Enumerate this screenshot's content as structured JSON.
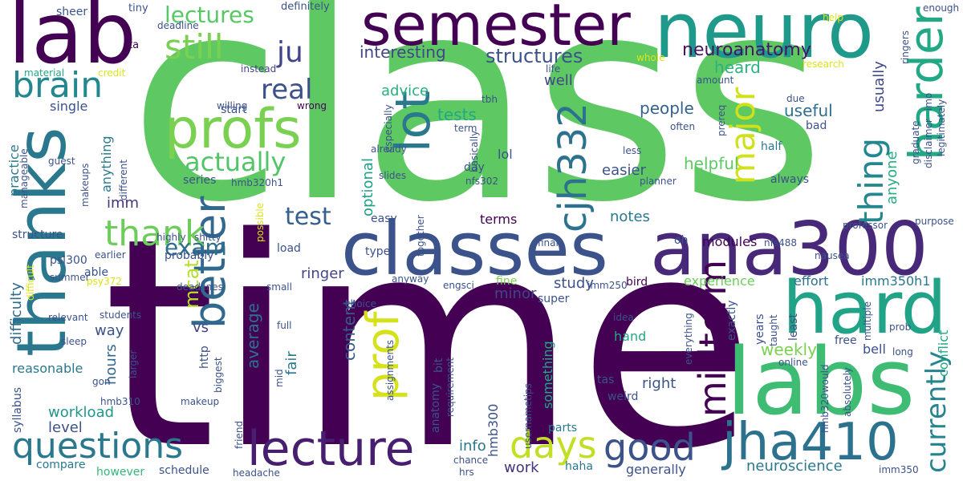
{
  "words": [
    {
      "text": "time",
      "color": "#440154"
    },
    {
      "text": "class",
      "color": "#5ec962"
    },
    {
      "text": "labs",
      "color": "#3fbc73"
    },
    {
      "text": "hard",
      "color": "#20a386"
    },
    {
      "text": "thanks",
      "color": "#2a788e"
    },
    {
      "text": "lab",
      "color": "#440154"
    },
    {
      "text": "neuro",
      "color": "#1f9a8a"
    },
    {
      "text": "semester",
      "color": "#440154"
    },
    {
      "text": "classes",
      "color": "#3b528b"
    },
    {
      "text": "ana300",
      "color": "#482878"
    },
    {
      "text": "profs",
      "color": "#7ad151"
    },
    {
      "text": "lecture",
      "color": "#481f70"
    },
    {
      "text": "jha410",
      "color": "#2c718e"
    },
    {
      "text": "questions",
      "color": "#2a788e"
    },
    {
      "text": "better",
      "color": "#31688e"
    },
    {
      "text": "harder",
      "color": "#22a884"
    },
    {
      "text": "prof",
      "color": "#d5e21a"
    },
    {
      "text": "days",
      "color": "#c2df23"
    },
    {
      "text": "good",
      "color": "#3b528b"
    },
    {
      "text": "midterm",
      "color": "#440154"
    },
    {
      "text": "lot",
      "color": "#2a788e"
    },
    {
      "text": "cjh332",
      "color": "#2c728e"
    },
    {
      "text": "thing",
      "color": "#24878e"
    },
    {
      "text": "major",
      "color": "#d0e11c"
    },
    {
      "text": "currently",
      "color": "#25848e"
    },
    {
      "text": "thank",
      "color": "#6ccd5a"
    },
    {
      "text": "brain",
      "color": "#23888e"
    },
    {
      "text": "still",
      "color": "#7ad151"
    },
    {
      "text": "actually",
      "color": "#52c569"
    },
    {
      "text": "exam",
      "color": "#2e6e8e"
    },
    {
      "text": "test",
      "color": "#355f8d"
    },
    {
      "text": "real",
      "color": "#3b528b"
    },
    {
      "text": "ju",
      "color": "#414487"
    },
    {
      "text": "lectures",
      "color": "#58c765"
    },
    {
      "text": "structures",
      "color": "#3b528b"
    },
    {
      "text": "neuroanatomy",
      "color": "#471365"
    },
    {
      "text": "interesting",
      "color": "#404688"
    },
    {
      "text": "advice",
      "color": "#29af7f"
    },
    {
      "text": "heard",
      "color": "#2db27d"
    },
    {
      "text": "well",
      "color": "#414487"
    },
    {
      "text": "usually",
      "color": "#3e4989"
    },
    {
      "text": "anyone",
      "color": "#26ad81"
    },
    {
      "text": "tests",
      "color": "#22a884"
    },
    {
      "text": "useful",
      "color": "#2d708e"
    },
    {
      "text": "people",
      "color": "#34618d"
    },
    {
      "text": "helpful",
      "color": "#5ec962"
    },
    {
      "text": "easier",
      "color": "#3b528b"
    },
    {
      "text": "mcat",
      "color": "#b5de2b"
    },
    {
      "text": "average",
      "color": "#2c728e"
    },
    {
      "text": "weekly",
      "color": "#7ad151"
    },
    {
      "text": "content",
      "color": "#375b8d"
    },
    {
      "text": "optional",
      "color": "#1fa188"
    },
    {
      "text": "hours",
      "color": "#31688e"
    },
    {
      "text": "workload",
      "color": "#1f978b"
    },
    {
      "text": "level",
      "color": "#3b528b"
    },
    {
      "text": "notes",
      "color": "#2a788e"
    },
    {
      "text": "study",
      "color": "#3b528b"
    },
    {
      "text": "minor",
      "color": "#414487"
    },
    {
      "text": "right",
      "color": "#3b528b"
    },
    {
      "text": "fair",
      "color": "#2a788e"
    },
    {
      "text": "ringer",
      "color": "#414487"
    },
    {
      "text": "terms",
      "color": "#440154"
    },
    {
      "text": "modules",
      "color": "#440154"
    },
    {
      "text": "experience",
      "color": "#6ccd5a"
    },
    {
      "text": "effort",
      "color": "#2c718e"
    },
    {
      "text": "imm350h1",
      "color": "#2a788e"
    },
    {
      "text": "bell",
      "color": "#3b528b"
    },
    {
      "text": "difficulty",
      "color": "#31688e"
    },
    {
      "text": "way",
      "color": "#3b528b"
    },
    {
      "text": "vs",
      "color": "#414487"
    },
    {
      "text": "imm",
      "color": "#46337e"
    },
    {
      "text": "anything",
      "color": "#2a788e"
    },
    {
      "text": "practice",
      "color": "#2a788e"
    },
    {
      "text": "single",
      "color": "#3b528b"
    },
    {
      "text": "reasonable",
      "color": "#2a788e"
    },
    {
      "text": "something",
      "color": "#22a884"
    },
    {
      "text": "info",
      "color": "#2a788e"
    },
    {
      "text": "work",
      "color": "#46337e"
    },
    {
      "text": "neuroscience",
      "color": "#2a788e"
    },
    {
      "text": "generally",
      "color": "#3b528b"
    },
    {
      "text": "compare",
      "color": "#2a788e"
    },
    {
      "text": "however",
      "color": "#35b779"
    },
    {
      "text": "schedule",
      "color": "#3b528b"
    },
    {
      "text": "hand",
      "color": "#22a884"
    },
    {
      "text": "weird",
      "color": "#3b528b"
    },
    {
      "text": "tas",
      "color": "#3b528b"
    },
    {
      "text": "parts",
      "color": "#2a788e"
    },
    {
      "text": "haha",
      "color": "#2a788e"
    },
    {
      "text": "super",
      "color": "#3b528b"
    },
    {
      "text": "fine",
      "color": "#7ad151"
    },
    {
      "text": "bird",
      "color": "#440154"
    },
    {
      "text": "years",
      "color": "#3b528b"
    },
    {
      "text": "least",
      "color": "#3b528b"
    },
    {
      "text": "exactly",
      "color": "#3b528b"
    },
    {
      "text": "conflict",
      "color": "#22a884"
    },
    {
      "text": "sheer",
      "color": "#3b528b"
    },
    {
      "text": "tiny",
      "color": "#3b528b"
    },
    {
      "text": "definitely",
      "color": "#3b528b"
    },
    {
      "text": "deadline",
      "color": "#3b528b"
    },
    {
      "text": "ta",
      "color": "#440154"
    },
    {
      "text": "material",
      "color": "#22a884"
    },
    {
      "text": "credit",
      "color": "#dde318"
    },
    {
      "text": "instead",
      "color": "#414487"
    },
    {
      "text": "life",
      "color": "#3b528b"
    },
    {
      "text": "whole",
      "color": "#dde318"
    },
    {
      "text": "research",
      "color": "#dde318"
    },
    {
      "text": "help",
      "color": "#dde318"
    },
    {
      "text": "enough",
      "color": "#3b528b"
    },
    {
      "text": "ringers",
      "color": "#3b528b"
    },
    {
      "text": "tbh",
      "color": "#3b528b"
    },
    {
      "text": "willing",
      "color": "#3b528b"
    },
    {
      "text": "wrong",
      "color": "#440154"
    },
    {
      "text": "start",
      "color": "#3b528b"
    },
    {
      "text": "especially",
      "color": "#3b528b"
    },
    {
      "text": "due",
      "color": "#3b528b"
    },
    {
      "text": "often",
      "color": "#3b528b"
    },
    {
      "text": "amount",
      "color": "#3b528b"
    },
    {
      "text": "prereq",
      "color": "#3b528b"
    },
    {
      "text": "term",
      "color": "#3b528b"
    },
    {
      "text": "bad",
      "color": "#3b528b"
    },
    {
      "text": "half",
      "color": "#2a788e"
    },
    {
      "text": "less",
      "color": "#3b528b"
    },
    {
      "text": "always",
      "color": "#3b528b"
    },
    {
      "text": "basically",
      "color": "#3b528b"
    },
    {
      "text": "already",
      "color": "#3b528b"
    },
    {
      "text": "lol",
      "color": "#3b528b"
    },
    {
      "text": "day",
      "color": "#3b528b"
    },
    {
      "text": "slides",
      "color": "#3b528b"
    },
    {
      "text": "nfs302",
      "color": "#3b528b"
    },
    {
      "text": "series",
      "color": "#3b528b"
    },
    {
      "text": "hmb320h1",
      "color": "#3b528b"
    },
    {
      "text": "planner",
      "color": "#3b528b"
    },
    {
      "text": "possible",
      "color": "#dde318"
    },
    {
      "text": "easy",
      "color": "#3b528b"
    },
    {
      "text": "together",
      "color": "#3b528b"
    },
    {
      "text": "guest",
      "color": "#3b528b"
    },
    {
      "text": "manageable",
      "color": "#3b528b"
    },
    {
      "text": "makeups",
      "color": "#3b528b"
    },
    {
      "text": "different",
      "color": "#3b528b"
    },
    {
      "text": "structure",
      "color": "#3b528b"
    },
    {
      "text": "psl300",
      "color": "#3b528b"
    },
    {
      "text": "summer",
      "color": "#3b528b"
    },
    {
      "text": "earlier",
      "color": "#3b528b"
    },
    {
      "text": "able",
      "color": "#3b528b"
    },
    {
      "text": "probably",
      "color": "#3b528b"
    },
    {
      "text": "highly",
      "color": "#3b528b"
    },
    {
      "text": "shitty",
      "color": "#3b528b"
    },
    {
      "text": "deadlines",
      "color": "#3b528b"
    },
    {
      "text": "psy372",
      "color": "#dde318"
    },
    {
      "text": "difficult",
      "color": "#dde318"
    },
    {
      "text": "small",
      "color": "#3b528b"
    },
    {
      "text": "students",
      "color": "#3b528b"
    },
    {
      "text": "relevant",
      "color": "#3b528b"
    },
    {
      "text": "sleep",
      "color": "#3b528b"
    },
    {
      "text": "syllabus",
      "color": "#3b528b"
    },
    {
      "text": "gon",
      "color": "#3b528b"
    },
    {
      "text": "larger",
      "color": "#3b528b"
    },
    {
      "text": "hmb310",
      "color": "#3b528b"
    },
    {
      "text": "mid",
      "color": "#3b528b"
    },
    {
      "text": "biggest",
      "color": "#3b528b"
    },
    {
      "text": "http",
      "color": "#3b528b"
    },
    {
      "text": "makeup",
      "color": "#3b528b"
    },
    {
      "text": "friend",
      "color": "#3b528b"
    },
    {
      "text": "headache",
      "color": "#3b528b"
    },
    {
      "text": "load",
      "color": "#3b528b"
    },
    {
      "text": "type",
      "color": "#3b528b"
    },
    {
      "text": "anyway",
      "color": "#3b528b"
    },
    {
      "text": "choice",
      "color": "#3b528b"
    },
    {
      "text": "full",
      "color": "#3b528b"
    },
    {
      "text": "engsci",
      "color": "#3b528b"
    },
    {
      "text": "imm250",
      "color": "#3b528b"
    },
    {
      "text": "hmb300",
      "color": "#3b528b"
    },
    {
      "text": "anatomy",
      "color": "#3b528b"
    },
    {
      "text": "bit",
      "color": "#3b528b"
    },
    {
      "text": "assignments",
      "color": "#3b528b"
    },
    {
      "text": "requirement",
      "color": "#3b528b"
    },
    {
      "text": "usernametips",
      "color": "#3b528b"
    },
    {
      "text": "chance",
      "color": "#3b528b"
    },
    {
      "text": "hrs",
      "color": "#3b528b"
    },
    {
      "text": "idea",
      "color": "#3b528b"
    },
    {
      "text": "final",
      "color": "#3b528b"
    },
    {
      "text": "oh",
      "color": "#3b528b"
    },
    {
      "text": "nfs488",
      "color": "#3b528b"
    },
    {
      "text": "nausea",
      "color": "#3b528b"
    },
    {
      "text": "professor",
      "color": "#3b528b"
    },
    {
      "text": "purpose",
      "color": "#3b528b"
    },
    {
      "text": "graduate",
      "color": "#3b528b"
    },
    {
      "text": "disclaimer",
      "color": "#3b528b"
    },
    {
      "text": "imo",
      "color": "#3b528b"
    },
    {
      "text": "legitimately",
      "color": "#3b528b"
    },
    {
      "text": "everything",
      "color": "#3b528b"
    },
    {
      "text": "taught",
      "color": "#3b528b"
    },
    {
      "text": "online",
      "color": "#3b528b"
    },
    {
      "text": "free",
      "color": "#3b528b"
    },
    {
      "text": "multiple",
      "color": "#3b528b"
    },
    {
      "text": "prob",
      "color": "#3b528b"
    },
    {
      "text": "long",
      "color": "#3b528b"
    },
    {
      "text": "hmb320would",
      "color": "#3b528b"
    },
    {
      "text": "absolutely",
      "color": "#3b528b"
    },
    {
      "text": "imm350",
      "color": "#3b528b"
    }
  ]
}
